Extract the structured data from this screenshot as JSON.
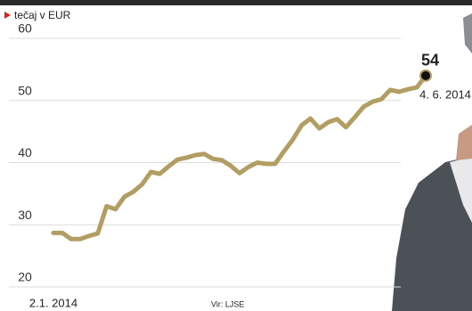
{
  "chart_data": {
    "type": "line",
    "subtitle": "tečaj v EUR",
    "source": "Vir: LJSE",
    "categories": [
      "2.1. 2014",
      null,
      null,
      null,
      null,
      null,
      null,
      null,
      null,
      null,
      null,
      null,
      null,
      null,
      null,
      null,
      null,
      null,
      null,
      null,
      null,
      null,
      null,
      null,
      null,
      null,
      null,
      null,
      null,
      null,
      null,
      null,
      null,
      null,
      null,
      null,
      null,
      null,
      null,
      null,
      null,
      null,
      "4. 6. 2014"
    ],
    "series": [
      {
        "color": "#b29d63",
        "values": [
          28.7,
          28.7,
          27.7,
          27.7,
          28.2,
          28.6,
          33,
          32.5,
          34.5,
          35.3,
          36.5,
          38.5,
          38.2,
          39.4,
          40.5,
          40.8,
          41.2,
          41.4,
          40.6,
          40.4,
          39.5,
          38.3,
          39.3,
          40,
          39.8,
          39.8,
          41.8,
          43.7,
          46,
          47.1,
          45.5,
          46.5,
          47,
          45.7,
          47.3,
          49,
          49.8,
          50.2,
          51.7,
          51.4,
          51.8,
          52.1,
          54
        ],
        "value_labels": {
          "42": "54"
        }
      }
    ],
    "ylim": [
      20,
      60
    ],
    "yticks": [
      20,
      30,
      40,
      50,
      60
    ],
    "grid": true
  }
}
